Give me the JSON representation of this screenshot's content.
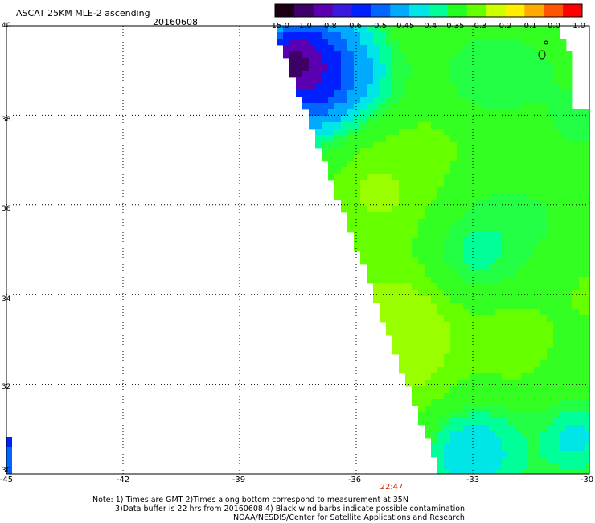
{
  "header": {
    "title": "ASCAT 25KM MLE-2 ascending",
    "date": "20160608"
  },
  "colorbar": {
    "labels": [
      "-15.0",
      "-1.0",
      "-0.8",
      "-0.6",
      "-0.5",
      "-0.45",
      "-0.4",
      "-0.35",
      "-0.3",
      "-0.2",
      "-0.1",
      "0.0",
      "1.0"
    ],
    "colors": [
      "#1a0010",
      "#3d0066",
      "#5a00b0",
      "#3a1ae0",
      "#0020ff",
      "#0066ff",
      "#00aaff",
      "#00e6e6",
      "#00ff99",
      "#22ff22",
      "#66ff00",
      "#ccff00",
      "#ffee00",
      "#ffaa00",
      "#ff5500",
      "#ff0000"
    ]
  },
  "axes": {
    "lat_labels": [
      "40",
      "38",
      "36",
      "34",
      "32",
      "30"
    ],
    "lon_labels": [
      "-45",
      "-42",
      "-39",
      "-36",
      "-33",
      "-30"
    ],
    "lat_values": [
      40,
      38,
      36,
      34,
      32,
      30
    ],
    "lon_values": [
      -45,
      -42,
      -39,
      -36,
      -33,
      -30
    ]
  },
  "time_label": "22:47",
  "notes": {
    "line1": "Note: 1) Times are GMT 2)Times along bottom correspond to measurement at 35N",
    "line2": "3)Data buffer is 22 hrs from 20160608 4) Black wind barbs indicate possible contamination",
    "line3": "NOAA/NESDIS/Center for Satellite Applications and Research"
  }
}
